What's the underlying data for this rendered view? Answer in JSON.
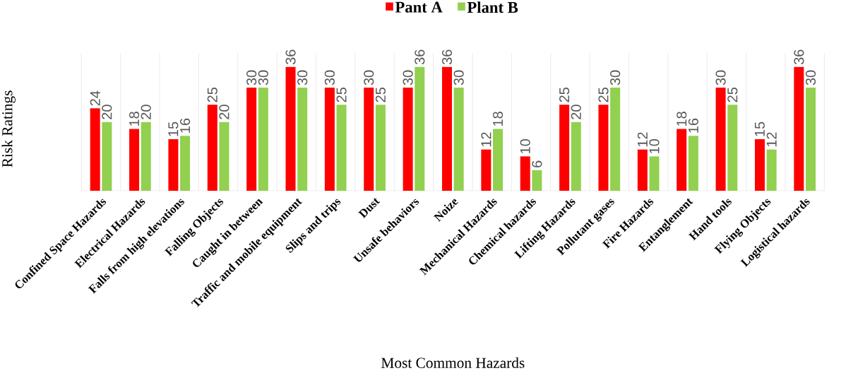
{
  "chart_data": {
    "type": "bar",
    "xlabel": "Most Common Hazards",
    "ylabel": "Risk Ratings",
    "categories": [
      "Confined Space Hazards",
      "Electrical Hazards",
      "Falls from high elevations",
      "Falling Objects",
      "Caught in between",
      "Traffic and mobile equipment",
      "Slips and trips",
      "Dust",
      "Unsafe behaviors",
      "Noize",
      "Mechanical Hazards",
      "Chemical hazards",
      "Lifting Hazards",
      "Pollutant gases",
      "Fire Hazards",
      "Entanglement",
      "Hand tools",
      "Flying Objects",
      "Logistical hazards"
    ],
    "series": [
      {
        "name": "Pant A",
        "color": "#ff0000",
        "values": [
          24,
          18,
          15,
          25,
          30,
          36,
          30,
          30,
          30,
          36,
          12,
          10,
          25,
          25,
          12,
          18,
          30,
          15,
          36
        ]
      },
      {
        "name": "Plant B",
        "color": "#92d050",
        "values": [
          20,
          20,
          16,
          20,
          30,
          30,
          25,
          25,
          36,
          30,
          18,
          6,
          20,
          30,
          10,
          16,
          25,
          12,
          30
        ]
      }
    ],
    "ylim": [
      0,
      40
    ],
    "data_labels": true,
    "grid": "x",
    "legend": "top",
    "tick_labels": "x"
  }
}
